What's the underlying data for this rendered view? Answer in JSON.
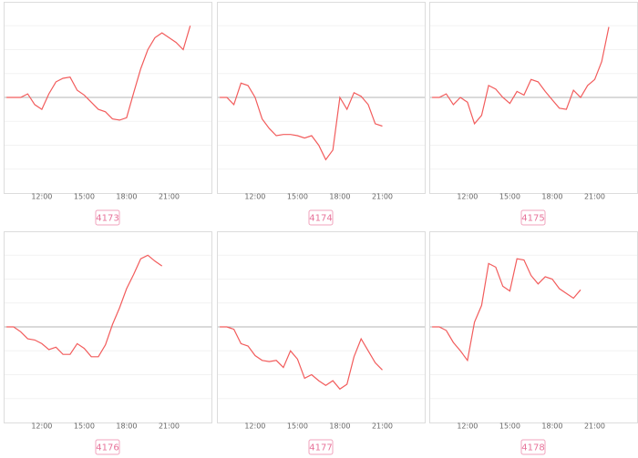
{
  "chart_data": [
    {
      "type": "line",
      "title": "4173",
      "color": "#f25c5c",
      "baseline": 0,
      "x": [
        9.5,
        10,
        10.5,
        11,
        11.5,
        12,
        12.5,
        13,
        13.5,
        14,
        14.5,
        15,
        15.5,
        16,
        16.5,
        17,
        17.5,
        18,
        18.5,
        19,
        19.5,
        20,
        20.5,
        21,
        21.5,
        22,
        22.5
      ],
      "series": [
        {
          "values": [
            0,
            0,
            0,
            0.15,
            -0.3,
            -0.5,
            0.15,
            0.65,
            0.8,
            0.85,
            0.3,
            0.1,
            -0.2,
            -0.5,
            -0.6,
            -0.9,
            -0.95,
            -0.85,
            0.2,
            1.2,
            2.0,
            2.5,
            2.7,
            2.5,
            2.3,
            2.0,
            3.0
          ]
        }
      ],
      "xlim": [
        9.3,
        24
      ],
      "ylim": [
        -4,
        4
      ],
      "xticks": [
        {
          "value": 12,
          "label": "12:00"
        },
        {
          "value": 15,
          "label": "15:00"
        },
        {
          "value": 18,
          "label": "18:00"
        },
        {
          "value": 21,
          "label": "21:00"
        }
      ],
      "yticks": [
        -3,
        -2,
        -1,
        1,
        2,
        3
      ]
    },
    {
      "type": "line",
      "title": "4174",
      "color": "#f25c5c",
      "baseline": 0,
      "x": [
        9.5,
        10,
        10.5,
        11,
        11.5,
        12,
        12.5,
        13,
        13.5,
        14,
        14.5,
        15,
        15.5,
        16,
        16.5,
        17,
        17.5,
        18,
        18.5,
        19,
        19.5,
        20,
        20.5,
        21
      ],
      "series": [
        {
          "values": [
            0,
            0,
            -0.3,
            0.6,
            0.5,
            0,
            -0.9,
            -1.3,
            -1.6,
            -1.55,
            -1.55,
            -1.6,
            -1.7,
            -1.6,
            -2.0,
            -2.6,
            -2.2,
            0,
            -0.5,
            0.2,
            0.05,
            -0.3,
            -1.1,
            -1.2
          ]
        }
      ],
      "xlim": [
        9.3,
        24
      ],
      "ylim": [
        -4,
        4
      ],
      "xticks": [
        {
          "value": 12,
          "label": "12:00"
        },
        {
          "value": 15,
          "label": "15:00"
        },
        {
          "value": 18,
          "label": "18:00"
        },
        {
          "value": 21,
          "label": "21:00"
        }
      ],
      "yticks": [
        -3,
        -2,
        -1,
        1,
        2,
        3
      ]
    },
    {
      "type": "line",
      "title": "4175",
      "color": "#f25c5c",
      "baseline": 0,
      "x": [
        9.5,
        10,
        10.5,
        11,
        11.5,
        12,
        12.5,
        13,
        13.5,
        14,
        14.5,
        15,
        15.5,
        16,
        16.5,
        17,
        17.5,
        18,
        18.5,
        19,
        19.5,
        20,
        20.5,
        21,
        21.5,
        22
      ],
      "series": [
        {
          "values": [
            0,
            0,
            0.15,
            -0.3,
            0,
            -0.2,
            -1.1,
            -0.75,
            0.5,
            0.35,
            0,
            -0.25,
            0.25,
            0.1,
            0.75,
            0.65,
            0.25,
            -0.1,
            -0.45,
            -0.5,
            0.3,
            0,
            0.5,
            0.75,
            1.5,
            2.95
          ]
        }
      ],
      "xlim": [
        9.3,
        24
      ],
      "ylim": [
        -4,
        4
      ],
      "xticks": [
        {
          "value": 12,
          "label": "12:00"
        },
        {
          "value": 15,
          "label": "15:00"
        },
        {
          "value": 18,
          "label": "18:00"
        },
        {
          "value": 21,
          "label": "21:00"
        }
      ],
      "yticks": [
        -3,
        -2,
        -1,
        1,
        2,
        3
      ]
    },
    {
      "type": "line",
      "title": "4176",
      "color": "#f25c5c",
      "baseline": 0,
      "x": [
        9.5,
        10,
        10.5,
        11,
        11.5,
        12,
        12.5,
        13,
        13.5,
        14,
        14.5,
        15,
        15.5,
        16,
        16.5,
        17,
        17.5,
        18,
        18.5,
        19,
        19.5,
        20,
        20.5
      ],
      "series": [
        {
          "values": [
            0,
            0,
            -0.2,
            -0.5,
            -0.55,
            -0.7,
            -0.95,
            -0.85,
            -1.15,
            -1.15,
            -0.7,
            -0.9,
            -1.25,
            -1.25,
            -0.75,
            0.1,
            0.8,
            1.6,
            2.2,
            2.85,
            3.0,
            2.75,
            2.55
          ]
        }
      ],
      "xlim": [
        9.3,
        24
      ],
      "ylim": [
        -4,
        4
      ],
      "xticks": [
        {
          "value": 12,
          "label": "12:00"
        },
        {
          "value": 15,
          "label": "15:00"
        },
        {
          "value": 18,
          "label": "18:00"
        },
        {
          "value": 21,
          "label": "21:00"
        }
      ],
      "yticks": [
        -3,
        -2,
        -1,
        1,
        2,
        3
      ]
    },
    {
      "type": "line",
      "title": "4177",
      "color": "#f25c5c",
      "baseline": 0,
      "x": [
        9.5,
        10,
        10.5,
        11,
        11.5,
        12,
        12.5,
        13,
        13.5,
        14,
        14.5,
        15,
        15.5,
        16,
        16.5,
        17,
        17.5,
        18,
        18.5,
        19,
        19.5,
        20,
        20.5,
        21
      ],
      "series": [
        {
          "values": [
            0,
            0,
            -0.1,
            -0.7,
            -0.8,
            -1.2,
            -1.4,
            -1.45,
            -1.4,
            -1.7,
            -1.0,
            -1.35,
            -2.15,
            -2.0,
            -2.25,
            -2.45,
            -2.25,
            -2.6,
            -2.4,
            -1.25,
            -0.5,
            -1.0,
            -1.5,
            -1.8
          ]
        }
      ],
      "xlim": [
        9.3,
        24
      ],
      "ylim": [
        -4,
        4
      ],
      "xticks": [
        {
          "value": 12,
          "label": "12:00"
        },
        {
          "value": 15,
          "label": "15:00"
        },
        {
          "value": 18,
          "label": "18:00"
        },
        {
          "value": 21,
          "label": "21:00"
        }
      ],
      "yticks": [
        -3,
        -2,
        -1,
        1,
        2,
        3
      ]
    },
    {
      "type": "line",
      "title": "4178",
      "color": "#f25c5c",
      "baseline": 0,
      "x": [
        9.5,
        10,
        10.5,
        11,
        11.5,
        12,
        12.5,
        13,
        13.5,
        14,
        14.5,
        15,
        15.5,
        16,
        16.5,
        17,
        17.5,
        18,
        18.5,
        19,
        19.5,
        20
      ],
      "series": [
        {
          "values": [
            0,
            0,
            -0.15,
            -0.65,
            -1.0,
            -1.4,
            0.2,
            0.9,
            2.65,
            2.5,
            1.7,
            1.5,
            2.85,
            2.8,
            2.15,
            1.8,
            2.1,
            2.0,
            1.6,
            1.4,
            1.2,
            1.55
          ]
        }
      ],
      "xlim": [
        9.3,
        24
      ],
      "ylim": [
        -4,
        4
      ],
      "xticks": [
        {
          "value": 12,
          "label": "12:00"
        },
        {
          "value": 15,
          "label": "15:00"
        },
        {
          "value": 18,
          "label": "18:00"
        },
        {
          "value": 21,
          "label": "21:00"
        }
      ],
      "yticks": [
        -3,
        -2,
        -1,
        1,
        2,
        3
      ]
    }
  ]
}
